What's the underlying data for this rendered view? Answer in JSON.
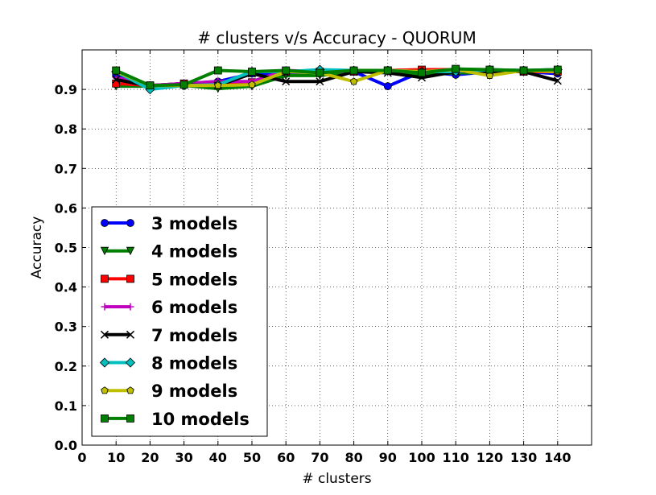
{
  "chart_data": {
    "type": "line",
    "title": "# clusters v/s Accuracy - QUORUM",
    "xlabel": "# clusters",
    "ylabel": "Accuracy",
    "xlim": [
      0,
      150
    ],
    "ylim": [
      0.0,
      1.0
    ],
    "xticks": [
      0,
      10,
      20,
      30,
      40,
      50,
      60,
      70,
      80,
      90,
      100,
      110,
      120,
      130,
      140
    ],
    "yticks": [
      0.0,
      0.1,
      0.2,
      0.3,
      0.4,
      0.5,
      0.6,
      0.7,
      0.8,
      0.9
    ],
    "xtick_labels": [
      "0",
      "10",
      "20",
      "30",
      "40",
      "50",
      "60",
      "70",
      "80",
      "90",
      "100",
      "110",
      "120",
      "130",
      "140"
    ],
    "ytick_labels": [
      "0.0",
      "0.1",
      "0.2",
      "0.3",
      "0.4",
      "0.5",
      "0.6",
      "0.7",
      "0.8",
      "0.9"
    ],
    "grid": true,
    "legend_position": "lower-left",
    "x": [
      10,
      20,
      30,
      40,
      50,
      60,
      70,
      80,
      90,
      100,
      110,
      120,
      130,
      140
    ],
    "series": [
      {
        "name": "3 models",
        "color": "#0000ff",
        "marker": "circle",
        "values": [
          0.935,
          0.91,
          0.915,
          0.92,
          0.94,
          0.94,
          0.945,
          0.945,
          0.908,
          0.945,
          0.937,
          0.945,
          0.945,
          0.94
        ]
      },
      {
        "name": "4 models",
        "color": "#008000",
        "marker": "triangle-down",
        "values": [
          0.908,
          0.908,
          0.91,
          0.902,
          0.908,
          0.935,
          0.935,
          0.945,
          0.945,
          0.938,
          0.942,
          0.942,
          0.948,
          0.945
        ]
      },
      {
        "name": "5 models",
        "color": "#ff0000",
        "marker": "square",
        "values": [
          0.915,
          0.91,
          0.915,
          0.915,
          0.918,
          0.945,
          0.945,
          0.945,
          0.948,
          0.95,
          0.95,
          0.948,
          0.945,
          0.945
        ]
      },
      {
        "name": "6 models",
        "color": "#bf00bf",
        "marker": "plus",
        "values": [
          0.93,
          0.91,
          0.915,
          0.92,
          0.92,
          0.948,
          0.945,
          0.945,
          0.945,
          0.945,
          0.945,
          0.945,
          0.948,
          0.95
        ]
      },
      {
        "name": "7 models",
        "color": "#000000",
        "marker": "x",
        "values": [
          0.925,
          0.908,
          0.912,
          0.91,
          0.94,
          0.92,
          0.92,
          0.945,
          0.942,
          0.93,
          0.945,
          0.945,
          0.945,
          0.922
        ]
      },
      {
        "name": "8 models",
        "color": "#00bfbf",
        "marker": "diamond",
        "values": [
          0.945,
          0.9,
          0.91,
          0.912,
          0.945,
          0.945,
          0.95,
          0.948,
          0.948,
          0.945,
          0.945,
          0.95,
          0.948,
          0.95
        ]
      },
      {
        "name": "9 models",
        "color": "#bfbf00",
        "marker": "pentagon",
        "values": [
          0.945,
          0.91,
          0.91,
          0.91,
          0.912,
          0.945,
          0.942,
          0.92,
          0.948,
          0.945,
          0.95,
          0.935,
          0.948,
          0.945
        ]
      },
      {
        "name": "10 models",
        "color": "#007f00",
        "marker": "square",
        "values": [
          0.948,
          0.91,
          0.912,
          0.948,
          0.945,
          0.948,
          0.942,
          0.948,
          0.948,
          0.942,
          0.952,
          0.95,
          0.948,
          0.95
        ]
      }
    ]
  }
}
